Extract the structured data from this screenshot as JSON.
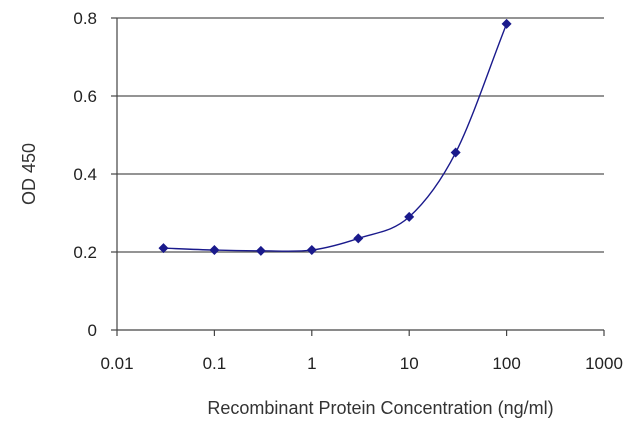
{
  "chart_data": {
    "type": "scatter",
    "title": "",
    "xlabel": "Recombinant Protein Concentration (ng/ml)",
    "ylabel": "OD 450",
    "x_scale": "log",
    "xlim": [
      0.01,
      1000
    ],
    "ylim": [
      0,
      0.8
    ],
    "x_ticks": [
      "0.01",
      "0.1",
      "1",
      "10",
      "100",
      "1000"
    ],
    "y_ticks": [
      "0",
      "0.2",
      "0.4",
      "0.6",
      "0.8"
    ],
    "grid": "horizontal",
    "legend": "none",
    "points": [
      {
        "x": 0.03,
        "y": 0.21
      },
      {
        "x": 0.1,
        "y": 0.205
      },
      {
        "x": 0.3,
        "y": 0.203
      },
      {
        "x": 1,
        "y": 0.205
      },
      {
        "x": 3,
        "y": 0.235
      },
      {
        "x": 10,
        "y": 0.29
      },
      {
        "x": 30,
        "y": 0.455
      },
      {
        "x": 100,
        "y": 0.785
      }
    ],
    "fit_curve": "sigmoidal",
    "colors": {
      "series": "#1a1a8c",
      "grid": "#555555",
      "axis": "#444444"
    }
  }
}
